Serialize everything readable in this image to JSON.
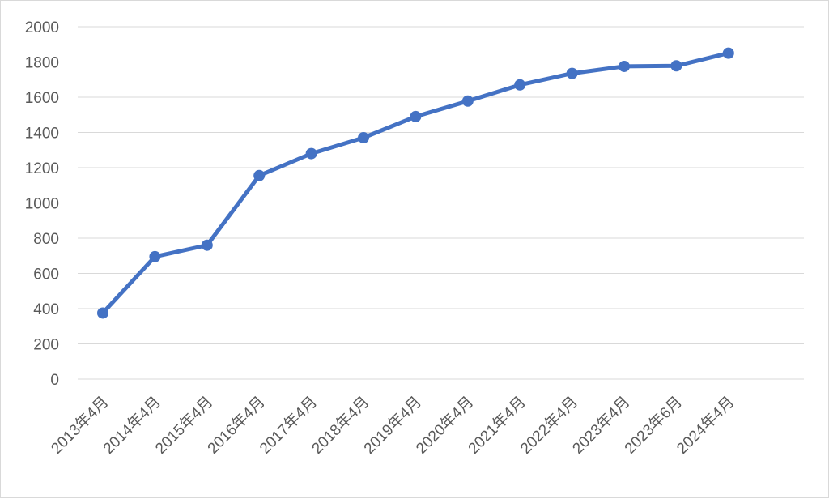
{
  "chart_data": {
    "type": "line",
    "title": "",
    "xlabel": "",
    "ylabel": "",
    "categories": [
      "2013年4月",
      "2014年4月",
      "2015年4月",
      "2016年4月",
      "2017年4月",
      "2018年4月",
      "2019年4月",
      "2020年4月",
      "2021年4月",
      "2022年4月",
      "2023年4月",
      "2023年6月",
      "2024年4月"
    ],
    "series": [
      {
        "values": [
          375,
          695,
          760,
          1155,
          1280,
          1370,
          1490,
          1578,
          1670,
          1735,
          1775,
          1778,
          1850
        ]
      }
    ],
    "ylim": [
      0,
      2000
    ],
    "yticks": [
      0,
      200,
      400,
      600,
      800,
      1000,
      1200,
      1400,
      1600,
      1800,
      2000
    ],
    "grid": "horizontal",
    "legend": "none",
    "line_color": "#4472c4",
    "grid_color": "#d9d9d9",
    "label_color": "#595959"
  }
}
